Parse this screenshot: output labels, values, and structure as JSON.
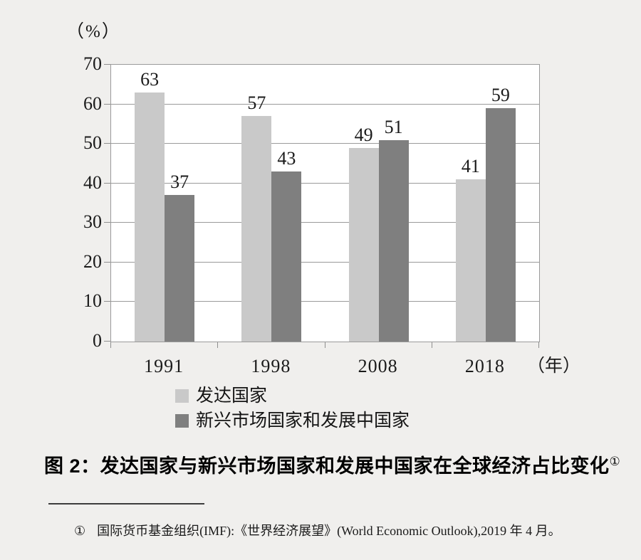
{
  "chart_data": {
    "type": "bar",
    "unit_label": "（%）",
    "x_axis_unit": "（年）",
    "categories": [
      "1991",
      "1998",
      "2008",
      "2018"
    ],
    "series": [
      {
        "name": "发达国家",
        "color": "#c9c9c9",
        "values": [
          63,
          57,
          49,
          41
        ]
      },
      {
        "name": "新兴市场国家和发展中国家",
        "color": "#7f7f7f",
        "values": [
          37,
          43,
          51,
          59
        ]
      }
    ],
    "ylim": [
      0,
      70
    ],
    "y_ticks": [
      0,
      10,
      20,
      30,
      40,
      50,
      60,
      70
    ],
    "grid": true,
    "value_labels": true,
    "legend_position": "bottom",
    "colors": {
      "page_background": "#f0efed",
      "plot_background": "#ffffff",
      "grid": "#9a9a9a",
      "text": "#1a1a1a"
    }
  },
  "caption": {
    "text": "图 2：发达国家与新兴市场国家和发展中国家在全球经济占比变化",
    "footnote_ref": "①"
  },
  "footnote": {
    "marker": "①",
    "text": "国际货币基金组织(IMF):《世界经济展望》(World Economic Outlook),2019 年 4 月。"
  }
}
